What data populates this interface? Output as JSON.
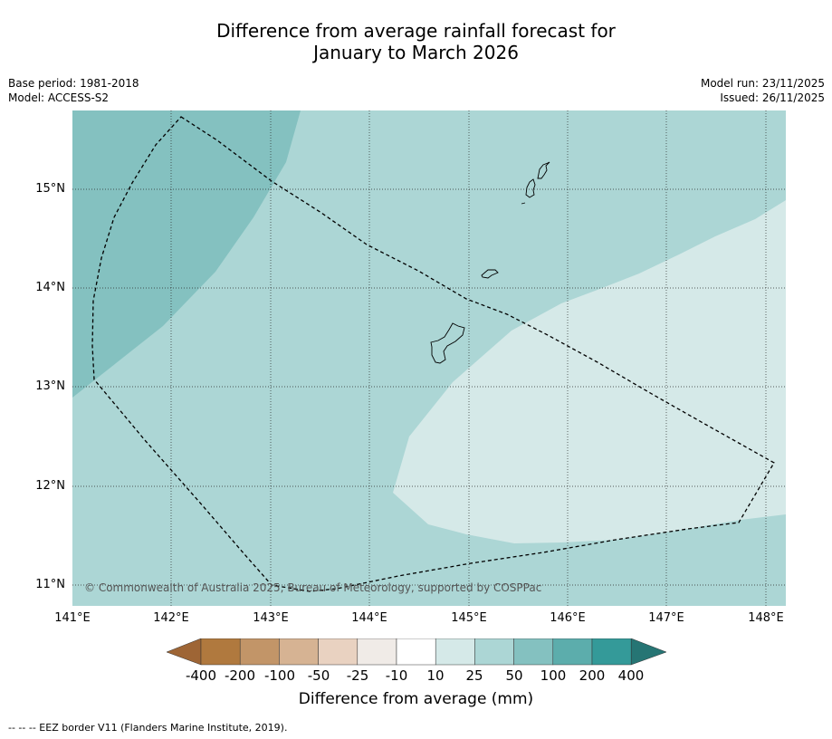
{
  "title": {
    "line1": "Difference from average rainfall forecast for",
    "line2": "January to March 2026"
  },
  "meta_left": {
    "base_period": "Base period: 1981-2018",
    "model": "Model: ACCESS-S2"
  },
  "meta_right": {
    "model_run": "Model run: 23/11/2025",
    "issued": "Issued: 26/11/2025"
  },
  "map": {
    "lon_range": [
      141.0,
      148.2
    ],
    "lat_range": [
      10.8,
      15.8
    ],
    "lat_labels": [
      "15°N",
      "14°N",
      "13°N",
      "12°N",
      "11°N"
    ],
    "lon_labels": [
      "141°E",
      "142°E",
      "143°E",
      "144°E",
      "145°E",
      "146°E",
      "147°E",
      "148°E"
    ],
    "copyright": "© Commonwealth of Australia 2025, Bureau of Meteorology, supported by COSPPac",
    "colors": {
      "band_25_50": "#acd6d5",
      "band_50_100": "#84c1c0",
      "band_10_25": "#d5e9e8"
    }
  },
  "colorbar": {
    "labels": [
      "-400",
      "-200",
      "-100",
      "-50",
      "-25",
      "-10",
      "10",
      "25",
      "50",
      "100",
      "200",
      "400"
    ],
    "colors": [
      "#9e6535",
      "#b0793e",
      "#c29568",
      "#d6b393",
      "#e9d2c1",
      "#f0ebe7",
      "#ffffff",
      "#d5e9e8",
      "#acd6d5",
      "#84c1c0",
      "#5cadac",
      "#349a99",
      "#267574"
    ],
    "title": "Difference from average (mm)"
  },
  "footnote": "--  --  -- EEZ border V11 (Flanders Marine Institute, 2019)."
}
